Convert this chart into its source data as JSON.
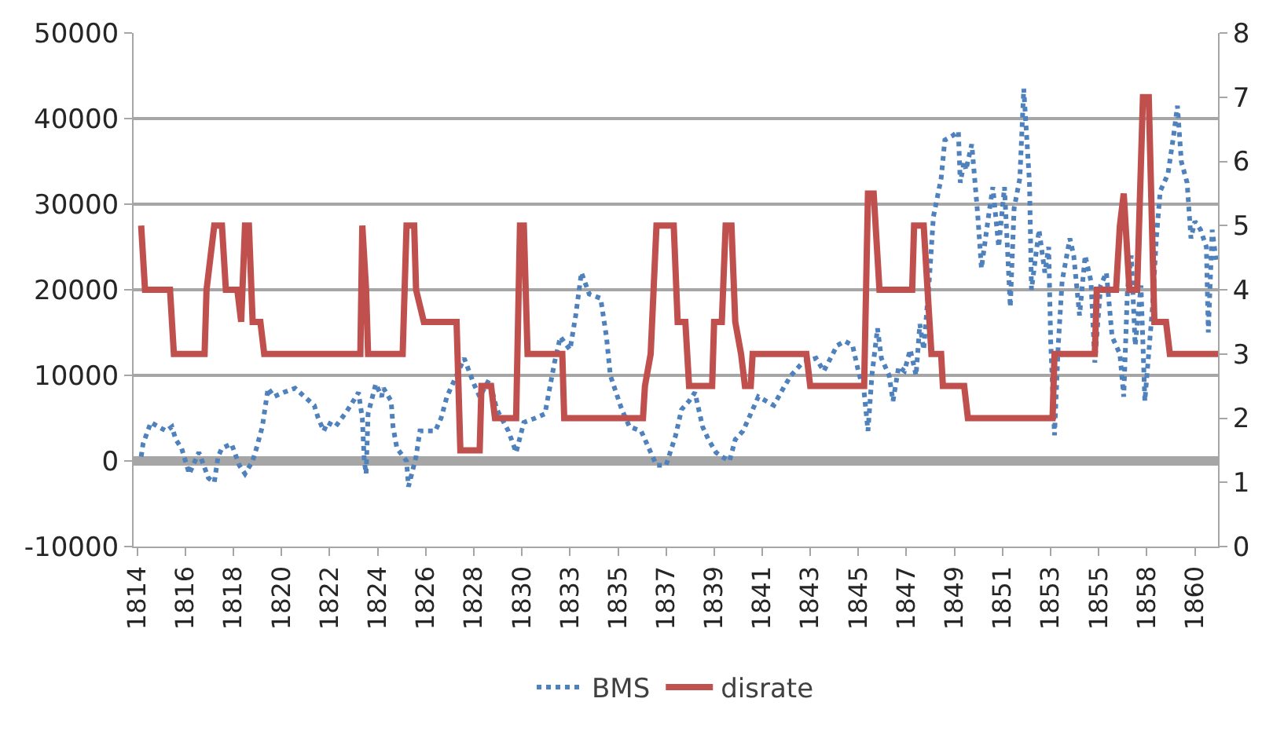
{
  "chart_data": {
    "type": "line",
    "xlim": [
      "1814-02",
      "1861-02"
    ],
    "xticks": [
      {
        "value": "1814-04",
        "label": "1814"
      },
      {
        "value": "1816-05",
        "label": "1816"
      },
      {
        "value": "1818-06",
        "label": "1818"
      },
      {
        "value": "1820-07",
        "label": "1820"
      },
      {
        "value": "1822-08",
        "label": "1822"
      },
      {
        "value": "1824-09",
        "label": "1824"
      },
      {
        "value": "1826-10",
        "label": "1826"
      },
      {
        "value": "1828-11",
        "label": "1828"
      },
      {
        "value": "1830-12",
        "label": "1830"
      },
      {
        "value": "1833-01",
        "label": "1833"
      },
      {
        "value": "1835-02",
        "label": "1835"
      },
      {
        "value": "1837-03",
        "label": "1837"
      },
      {
        "value": "1839-04",
        "label": "1839"
      },
      {
        "value": "1841-05",
        "label": "1841"
      },
      {
        "value": "1843-06",
        "label": "1843"
      },
      {
        "value": "1845-07",
        "label": "1845"
      },
      {
        "value": "1847-08",
        "label": "1847"
      },
      {
        "value": "1849-09",
        "label": "1849"
      },
      {
        "value": "1851-10",
        "label": "1851"
      },
      {
        "value": "1853-11",
        "label": "1853"
      },
      {
        "value": "1855-12",
        "label": "1855"
      },
      {
        "value": "1858-01",
        "label": "1858"
      },
      {
        "value": "1860-02",
        "label": "1860"
      }
    ],
    "ylim": [
      -10000,
      50000
    ],
    "yticks": [
      -10000,
      0,
      10000,
      20000,
      30000,
      40000,
      50000
    ],
    "y2lim": [
      0,
      8
    ],
    "y2ticks": [
      0,
      1,
      2,
      3,
      4,
      5,
      6,
      7,
      8
    ],
    "grid": "y",
    "legend": "bottom",
    "series": [
      {
        "name": "BMS",
        "color": "#4f81bd",
        "line_style": "dotted",
        "x": [
          "1814-06",
          "1814-07",
          "1814-11",
          "1815-03",
          "1815-07",
          "1815-10",
          "1815-12",
          "1816-03",
          "1816-07",
          "1816-12",
          "1817-05",
          "1817-08",
          "1817-10",
          "1817-12",
          "1818-05",
          "1818-09",
          "1818-12",
          "1819-04",
          "1819-06",
          "1819-09",
          "1819-10",
          "1819-12",
          "1820-03",
          "1820-08",
          "1821-02",
          "1821-07",
          "1821-12",
          "1822-02",
          "1822-05",
          "1822-07",
          "1822-11",
          "1823-04",
          "1823-07",
          "1823-11",
          "1824-01",
          "1824-02",
          "1824-03",
          "1824-04",
          "1824-08",
          "1824-11",
          "1824-12",
          "1825-04",
          "1825-05",
          "1825-07",
          "1825-12",
          "1826-01",
          "1826-05",
          "1826-07",
          "1827-03",
          "1827-06",
          "1827-09",
          "1828-02",
          "1828-06",
          "1828-11",
          "1829-02",
          "1829-07",
          "1829-11",
          "1830-05",
          "1830-09",
          "1831-01",
          "1831-07",
          "1831-12",
          "1832-02",
          "1832-05",
          "1832-08",
          "1833-01",
          "1833-04",
          "1833-07",
          "1833-11",
          "1834-05",
          "1834-08",
          "1834-10",
          "1835-04",
          "1835-08",
          "1836-02",
          "1836-06",
          "1836-10",
          "1837-03",
          "1837-08",
          "1837-11",
          "1838-03",
          "1838-06",
          "1838-10",
          "1839-01",
          "1839-05",
          "1839-08",
          "1839-12",
          "1840-03",
          "1840-07",
          "1840-11",
          "1841-03",
          "1841-11",
          "1842-04",
          "1842-08",
          "1843-02",
          "1843-09",
          "1844-01",
          "1844-08",
          "1844-12",
          "1845-04",
          "1845-07",
          "1845-10",
          "1845-12",
          "1846-02",
          "1846-05",
          "1846-07",
          "1846-11",
          "1847-01",
          "1847-04",
          "1847-07",
          "1847-10",
          "1848-01",
          "1848-03",
          "1848-05",
          "1848-08",
          "1848-10",
          "1849-02",
          "1849-04",
          "1849-08",
          "1849-11",
          "1849-12",
          "1850-02",
          "1850-03",
          "1850-06",
          "1850-09",
          "1850-11",
          "1851-03",
          "1851-05",
          "1851-08",
          "1851-11",
          "1852-02",
          "1852-04",
          "1852-07",
          "1852-09",
          "1852-12",
          "1853-01",
          "1853-05",
          "1853-08",
          "1853-10",
          "1853-11",
          "1854-01",
          "1854-03",
          "1854-05",
          "1854-09",
          "1854-11",
          "1855-02",
          "1855-05",
          "1855-08",
          "1855-10",
          "1856-01",
          "1856-04",
          "1856-07",
          "1856-11",
          "1857-01",
          "1857-03",
          "1857-05",
          "1857-07",
          "1857-10",
          "1857-12",
          "1858-04",
          "1858-06",
          "1858-08",
          "1858-12",
          "1859-03",
          "1859-05",
          "1859-07",
          "1859-10",
          "1859-12",
          "1860-02",
          "1860-05",
          "1860-08",
          "1860-09",
          "1860-11",
          "1861-01"
        ],
        "values": [
          500,
          2000,
          4500,
          4000,
          3500,
          4000,
          2500,
          1500,
          -1500,
          1000,
          -2000,
          -2500,
          500,
          1500,
          2000,
          -500,
          -1500,
          0,
          1500,
          4000,
          5500,
          8500,
          7500,
          8000,
          8500,
          7500,
          6500,
          5000,
          3500,
          4500,
          4000,
          5500,
          6500,
          8000,
          5000,
          0,
          -1500,
          5500,
          9000,
          7500,
          8500,
          7000,
          4000,
          1500,
          0,
          -3000,
          500,
          3500,
          3500,
          5000,
          7500,
          10000,
          12000,
          9000,
          7500,
          9500,
          6000,
          3500,
          1000,
          4500,
          5000,
          5500,
          8000,
          11500,
          14500,
          13000,
          17000,
          22000,
          19500,
          19000,
          14500,
          10000,
          6000,
          4000,
          3500,
          1500,
          -500,
          -500,
          3000,
          6000,
          7000,
          8000,
          4000,
          2500,
          1000,
          500,
          0,
          2500,
          3500,
          5500,
          7500,
          6500,
          8500,
          10000,
          11500,
          12000,
          10500,
          13500,
          14000,
          13500,
          10500,
          8000,
          3500,
          10000,
          15500,
          12000,
          10000,
          7000,
          11000,
          10500,
          13000,
          10000,
          16000,
          13000,
          21500,
          28500,
          33000,
          37500,
          38000,
          38500,
          32500,
          35000,
          34000,
          37000,
          29000,
          22500,
          29000,
          32000,
          25000,
          32000,
          18000,
          29500,
          33000,
          43500,
          32500,
          20000,
          27000,
          22000,
          25000,
          14000,
          3000,
          13500,
          21000,
          26000,
          24000,
          17000,
          24000,
          21000,
          11500,
          20500,
          22000,
          14500,
          12500,
          7500,
          20000,
          24000,
          13500,
          20500,
          7000,
          18000,
          26000,
          31500,
          33500,
          38000,
          41500,
          35000,
          32500,
          26000,
          28000,
          27000,
          25000,
          15000,
          27000,
          23500
        ]
      },
      {
        "name": "disrate",
        "color": "#c0504d",
        "line_style": "solid",
        "axis": "y2",
        "x": [
          "1814-06",
          "1814-08",
          "1815-09",
          "1815-11",
          "1817-03",
          "1817-04",
          "1817-08",
          "1817-12",
          "1818-02",
          "1818-08",
          "1818-10",
          "1818-12",
          "1819-02",
          "1819-04",
          "1819-08",
          "1819-10",
          "1823-12",
          "1824-01",
          "1824-03",
          "1824-04",
          "1825-10",
          "1825-12",
          "1826-04",
          "1826-05",
          "1826-09",
          "1828-02",
          "1828-04",
          "1829-02",
          "1829-03",
          "1829-08",
          "1829-10",
          "1830-09",
          "1830-11",
          "1831-01",
          "1831-03",
          "1832-09",
          "1832-10",
          "1836-03",
          "1836-04",
          "1836-07",
          "1836-10",
          "1837-07",
          "1837-09",
          "1838-01",
          "1838-03",
          "1839-03",
          "1839-04",
          "1839-08",
          "1839-10",
          "1840-01",
          "1840-03",
          "1840-06",
          "1840-08",
          "1840-11",
          "1840-12",
          "1843-04",
          "1843-06",
          "1845-10",
          "1845-12",
          "1846-03",
          "1846-04",
          "1846-06",
          "1847-11",
          "1847-12",
          "1848-05",
          "1848-07",
          "1848-09",
          "1849-02",
          "1849-03",
          "1850-02",
          "1850-04",
          "1853-12",
          "1854-01",
          "1855-10",
          "1855-11",
          "1856-09",
          "1856-11",
          "1857-01",
          "1857-04",
          "1857-08",
          "1857-11",
          "1858-02",
          "1858-05",
          "1858-11",
          "1859-01",
          "1861-02"
        ],
        "values": [
          5,
          4,
          4,
          3,
          3,
          4,
          5,
          5,
          4,
          4,
          3.5,
          5,
          5,
          3.5,
          3.5,
          3,
          3,
          5,
          4,
          3,
          3,
          5,
          5,
          4,
          3.5,
          3.5,
          1.5,
          1.5,
          2.5,
          2.5,
          2,
          2,
          5,
          5,
          3,
          3,
          2,
          2,
          2.5,
          3,
          5,
          5,
          3.5,
          3.5,
          2.5,
          2.5,
          3.5,
          3.5,
          5,
          5,
          3.5,
          3,
          2.5,
          2.5,
          3,
          3,
          2.5,
          2.5,
          5.5,
          5.5,
          5,
          4,
          4,
          5,
          5,
          4,
          3,
          3,
          2.5,
          2.5,
          2,
          2,
          3,
          3,
          4,
          4,
          5,
          5.5,
          4,
          4,
          7,
          7,
          3.5,
          3.5,
          3,
          3
        ]
      }
    ]
  }
}
